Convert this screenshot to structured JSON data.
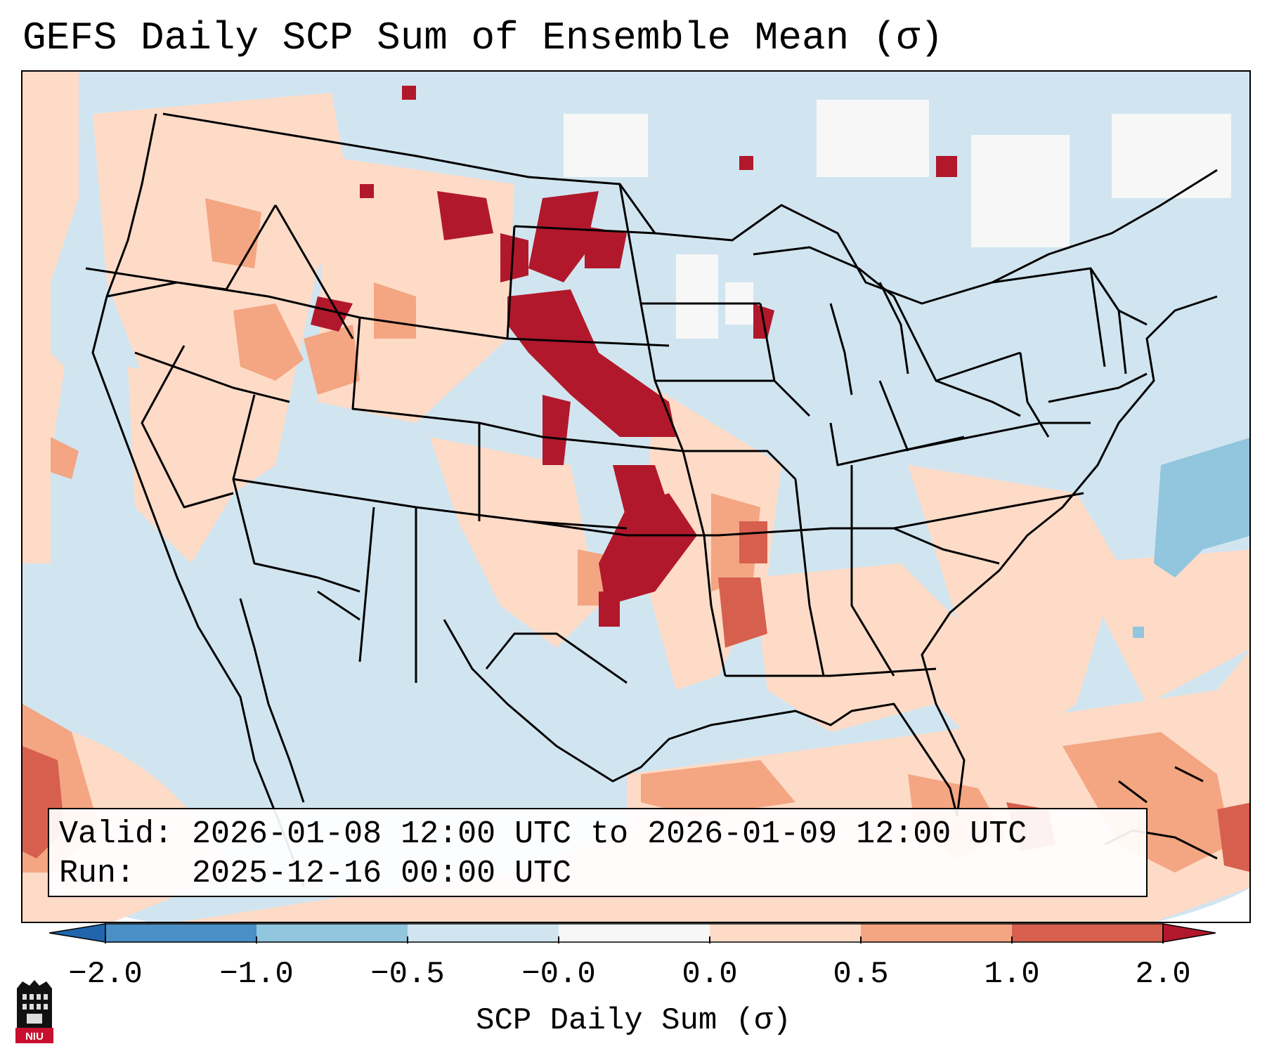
{
  "title": "GEFS Daily SCP Sum of Ensemble Mean (σ)",
  "info": {
    "valid_label": "Valid:",
    "valid_value": "2026-01-08 12:00 UTC to 2026-01-09 12:00 UTC",
    "run_label": "Run:",
    "run_value": "2025-12-16 00:00 UTC"
  },
  "colorbar": {
    "label": "SCP Daily Sum (σ)",
    "ticks": [
      "−2.0",
      "−1.0",
      "−0.5",
      "−0.0",
      "0.0",
      "0.5",
      "1.0",
      "2.0"
    ],
    "colors": [
      "#4a8fc6",
      "#92c5de",
      "#d1e5f0",
      "#f7f7f7",
      "#fddbc7",
      "#f4a582",
      "#d6604d",
      "#b2182b"
    ]
  },
  "map": {
    "field": "SCP daily sum anomaly",
    "region": "CONUS",
    "background_category": "#d1e5f0",
    "hotspots": [
      {
        "region": "Central Plains (Kansas/Nebraska/Oklahoma)",
        "category": "2.0"
      },
      {
        "region": "Northern Plains (Montana/South Dakota)",
        "category": "2.0"
      },
      {
        "region": "Lower Mississippi Valley",
        "category": "1.0"
      },
      {
        "region": "Gulf of Mexico",
        "category": "0.5"
      },
      {
        "region": "Western Atlantic",
        "category": "-1.0"
      }
    ]
  },
  "logo": {
    "text": "NIU"
  }
}
